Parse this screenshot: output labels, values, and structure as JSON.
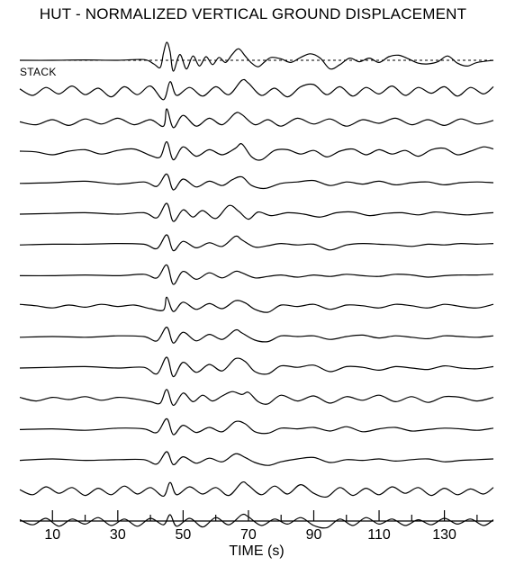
{
  "chart_data": {
    "type": "line",
    "title": "HUT - NORMALIZED VERTICAL GROUND DISPLACEMENT",
    "xlabel": "TIME (s)",
    "ylabel": "",
    "xlim": [
      0,
      145
    ],
    "x_major_ticks": [
      10,
      30,
      50,
      70,
      90,
      110,
      130
    ],
    "x_minor_ticks": [
      20,
      40,
      60,
      80,
      100,
      120,
      140
    ],
    "series": [
      {
        "name": "STACK",
        "dashed_baseline": true,
        "x": [
          0,
          10,
          20,
          30,
          38,
          41,
          43,
          44,
          45,
          46,
          47,
          49,
          51,
          53,
          55,
          57,
          59,
          61,
          63,
          65,
          67,
          69,
          71,
          73,
          75,
          77,
          80,
          83,
          86,
          89,
          92,
          95,
          98,
          101,
          104,
          107,
          110,
          113,
          116,
          119,
          122,
          125,
          128,
          131,
          134,
          137,
          140,
          145
        ],
        "y": [
          0,
          0,
          0.05,
          0,
          0.1,
          -0.5,
          -1,
          1,
          2.5,
          1.2,
          -1.5,
          0.8,
          -1.2,
          0.6,
          -0.8,
          0.5,
          -0.6,
          0.4,
          -0.3,
          0.8,
          1.6,
          0.6,
          -0.4,
          -0.9,
          -0.2,
          0.4,
          0.2,
          -0.3,
          0.4,
          0.9,
          0.3,
          -1.2,
          -0.6,
          0.3,
          -0.2,
          0.3,
          -0.3,
          0.5,
          0.7,
          0.2,
          -0.4,
          -0.5,
          -0.2,
          0.6,
          -0.4,
          -0.8,
          -0.3,
          0
        ]
      },
      {
        "x": [
          0,
          4,
          8,
          12,
          16,
          20,
          24,
          28,
          32,
          36,
          40,
          44,
          46,
          48,
          52,
          56,
          60,
          64,
          68,
          70,
          74,
          78,
          82,
          86,
          90,
          94,
          98,
          102,
          106,
          110,
          114,
          118,
          122,
          126,
          130,
          134,
          138,
          142,
          145
        ],
        "y": [
          0.3,
          -0.6,
          0.5,
          -0.4,
          0.7,
          -0.5,
          0.4,
          -0.8,
          0.6,
          -0.5,
          0.7,
          -1.2,
          1.3,
          -0.6,
          0.5,
          -0.7,
          0.6,
          -0.5,
          1.5,
          1.1,
          -0.6,
          0.4,
          -0.8,
          0.6,
          0.9,
          -0.5,
          0.6,
          -0.7,
          0.5,
          -0.4,
          0.7,
          -0.6,
          0.5,
          -0.3,
          0.6,
          -0.7,
          0.5,
          -0.4,
          0.6
        ]
      },
      {
        "x": [
          0,
          5,
          10,
          15,
          20,
          25,
          30,
          35,
          40,
          44,
          45,
          47,
          50,
          54,
          58,
          62,
          66,
          68,
          72,
          76,
          80,
          85,
          90,
          95,
          100,
          105,
          110,
          115,
          120,
          125,
          130,
          135,
          140,
          145
        ],
        "y": [
          0,
          -0.4,
          0.3,
          -0.5,
          0.4,
          -0.3,
          0.5,
          -0.4,
          0.3,
          -0.6,
          1.8,
          -0.8,
          0.9,
          -0.6,
          0.5,
          -0.4,
          1.2,
          1,
          -0.4,
          0.3,
          -0.6,
          0.5,
          -0.3,
          0.4,
          -0.6,
          0.3,
          -0.2,
          0.5,
          -0.4,
          0.3,
          -0.5,
          0.4,
          -0.3,
          0.2
        ]
      },
      {
        "x": [
          0,
          5,
          10,
          15,
          20,
          25,
          30,
          35,
          40,
          43,
          45,
          47,
          50,
          54,
          58,
          62,
          66,
          68,
          71,
          74,
          78,
          82,
          86,
          90,
          94,
          98,
          102,
          106,
          110,
          114,
          118,
          122,
          126,
          130,
          134,
          138,
          142,
          145
        ],
        "y": [
          0.2,
          0.1,
          -0.3,
          0.2,
          0.4,
          -0.2,
          0.3,
          0.5,
          -0.4,
          -0.6,
          1.5,
          -1,
          0.8,
          -0.5,
          0.4,
          -0.3,
          0.6,
          1.2,
          -0.6,
          -1,
          0.3,
          0.4,
          -0.2,
          0.3,
          -0.6,
          0.2,
          0.5,
          -0.3,
          0.4,
          -0.2,
          0.3,
          -0.5,
          0.4,
          0.6,
          -0.3,
          0.2,
          0.8,
          0.5
        ]
      },
      {
        "x": [
          0,
          10,
          20,
          30,
          38,
          42,
          45,
          47,
          50,
          54,
          58,
          62,
          65,
          68,
          71,
          75,
          80,
          85,
          90,
          95,
          100,
          105,
          110,
          115,
          120,
          125,
          130,
          135,
          140,
          145
        ],
        "y": [
          0,
          0.1,
          0.3,
          -0.1,
          0.2,
          -0.4,
          1.3,
          -0.9,
          0.6,
          -0.5,
          0.3,
          -0.3,
          0.5,
          0.9,
          -0.3,
          -0.7,
          0,
          0.2,
          0.4,
          -0.3,
          0.2,
          -0.1,
          0.3,
          -0.2,
          0.1,
          0.2,
          -0.2,
          0.1,
          0.2,
          0.1
        ]
      },
      {
        "x": [
          0,
          10,
          20,
          30,
          38,
          42,
          45,
          47,
          50,
          53,
          56,
          60,
          64,
          67,
          70,
          73,
          77,
          82,
          87,
          92,
          97,
          102,
          107,
          112,
          117,
          122,
          127,
          132,
          137,
          142,
          145
        ],
        "y": [
          0,
          0.1,
          0.2,
          0,
          0.2,
          -0.5,
          1.5,
          -1,
          0.6,
          -0.4,
          0.5,
          -0.6,
          1.2,
          0.4,
          -0.7,
          0.3,
          -0.2,
          0.2,
          0,
          -0.4,
          0.2,
          0.3,
          -0.2,
          0.1,
          0.2,
          -0.1,
          0.3,
          0.1,
          -0.1,
          0.1,
          0.2
        ]
      },
      {
        "x": [
          0,
          10,
          20,
          30,
          38,
          42,
          45,
          47,
          50,
          54,
          58,
          62,
          66,
          68,
          72,
          76,
          80,
          85,
          90,
          95,
          100,
          105,
          110,
          115,
          120,
          125,
          130,
          135,
          140,
          145
        ],
        "y": [
          0,
          0.1,
          0.1,
          0.2,
          0.1,
          -0.5,
          1.4,
          -0.8,
          0.5,
          -0.4,
          0.3,
          -0.2,
          1.2,
          0.7,
          -0.3,
          -0.1,
          0.2,
          0,
          0.1,
          -0.7,
          0,
          0.2,
          0.1,
          0,
          -0.2,
          0.1,
          0,
          0.2,
          0.1,
          0.2
        ]
      },
      {
        "x": [
          0,
          10,
          20,
          30,
          38,
          42,
          45,
          47,
          50,
          54,
          58,
          62,
          66,
          68,
          72,
          76,
          80,
          85,
          90,
          95,
          100,
          105,
          110,
          115,
          120,
          125,
          130,
          135,
          140,
          145
        ],
        "y": [
          0,
          0,
          0.1,
          0,
          0.2,
          -0.3,
          1.5,
          -1.2,
          0.6,
          -0.5,
          0.4,
          -0.3,
          0.6,
          0.4,
          -0.3,
          -0.1,
          0.1,
          -0.2,
          0.1,
          -0.1,
          0.2,
          0,
          -0.1,
          0.2,
          0.1,
          -0.2,
          0,
          0.1,
          0.1,
          0.2
        ]
      },
      {
        "x": [
          0,
          5,
          10,
          15,
          20,
          25,
          30,
          35,
          40,
          44,
          45,
          47,
          50,
          54,
          58,
          62,
          66,
          69,
          72,
          76,
          80,
          85,
          90,
          95,
          100,
          105,
          110,
          115,
          120,
          125,
          130,
          135,
          140,
          145
        ],
        "y": [
          0.3,
          0.1,
          -0.2,
          0.2,
          -0.1,
          0.3,
          0,
          0.2,
          -0.3,
          -0.5,
          1.3,
          -0.7,
          0.6,
          -0.4,
          0.4,
          -0.3,
          0.8,
          0.5,
          -0.4,
          -0.8,
          0.2,
          0,
          0.3,
          -0.4,
          0.2,
          0.1,
          -0.2,
          0.3,
          0.1,
          -0.2,
          0.3,
          0,
          -0.2,
          0.3
        ]
      },
      {
        "x": [
          0,
          10,
          20,
          30,
          38,
          42,
          45,
          47,
          50,
          54,
          58,
          62,
          66,
          68,
          72,
          76,
          80,
          85,
          90,
          95,
          100,
          105,
          110,
          115,
          120,
          125,
          130,
          135,
          140,
          145
        ],
        "y": [
          0,
          0.1,
          0,
          0.2,
          0.1,
          -0.5,
          1.4,
          -0.8,
          0.7,
          -0.5,
          0.4,
          -0.3,
          1,
          0.6,
          -0.4,
          -0.6,
          0.2,
          0.1,
          0.2,
          -0.3,
          0.1,
          0.3,
          -0.1,
          0.2,
          0,
          -0.2,
          0.2,
          0.1,
          0,
          0.2
        ]
      },
      {
        "x": [
          0,
          10,
          20,
          30,
          38,
          42,
          45,
          47,
          50,
          54,
          58,
          62,
          66,
          69,
          72,
          76,
          80,
          85,
          90,
          95,
          100,
          105,
          110,
          115,
          120,
          125,
          130,
          135,
          140,
          145
        ],
        "y": [
          0,
          0.1,
          0.2,
          0,
          0.1,
          -0.8,
          1.5,
          -1.2,
          0.8,
          -0.6,
          0.5,
          -0.4,
          1.3,
          0.9,
          -0.5,
          -0.8,
          0.3,
          0.1,
          0.4,
          -0.5,
          0.2,
          0.1,
          -0.3,
          0.2,
          0,
          -0.2,
          0.3,
          0,
          -0.1,
          0.2
        ]
      },
      {
        "x": [
          0,
          5,
          10,
          15,
          20,
          25,
          30,
          35,
          40,
          43,
          45,
          47,
          50,
          53,
          56,
          59,
          62,
          65,
          68,
          70,
          73,
          76,
          80,
          85,
          90,
          95,
          100,
          105,
          110,
          115,
          120,
          125,
          130,
          135,
          140,
          145
        ],
        "y": [
          0.2,
          -0.3,
          0.2,
          -0.1,
          0.3,
          -0.2,
          0.2,
          0,
          -0.4,
          -0.6,
          1.3,
          -0.9,
          0.8,
          -0.4,
          0.5,
          -0.3,
          0.4,
          1,
          0.6,
          0.9,
          -0.4,
          -0.7,
          0.5,
          -0.3,
          0.4,
          -0.6,
          0.3,
          -0.2,
          0.5,
          -0.4,
          0.3,
          -0.5,
          0.3,
          0.2,
          -0.3,
          0.2
        ]
      },
      {
        "x": [
          0,
          10,
          20,
          30,
          38,
          42,
          45,
          47,
          50,
          54,
          58,
          62,
          66,
          69,
          72,
          76,
          80,
          85,
          90,
          95,
          100,
          105,
          110,
          115,
          120,
          125,
          130,
          135,
          140,
          145
        ],
        "y": [
          0,
          0.1,
          -0.1,
          0.2,
          0.1,
          -0.4,
          1.5,
          -0.7,
          0.6,
          -0.4,
          0.3,
          -0.3,
          1.1,
          0.8,
          -0.3,
          -0.5,
          0.2,
          0.1,
          0.3,
          -0.2,
          0.4,
          -0.3,
          0.1,
          0.3,
          -0.2,
          0,
          0.2,
          0.1,
          -0.1,
          0.2
        ]
      },
      {
        "x": [
          0,
          10,
          20,
          30,
          38,
          42,
          45,
          47,
          50,
          54,
          58,
          62,
          66,
          69,
          72,
          76,
          80,
          85,
          90,
          95,
          100,
          105,
          110,
          115,
          120,
          125,
          130,
          135,
          140,
          145
        ],
        "y": [
          0,
          0.2,
          0,
          0.1,
          0.1,
          -0.5,
          1.2,
          -0.6,
          0.5,
          -0.4,
          0.3,
          -0.2,
          0.9,
          0.4,
          -0.3,
          -0.7,
          -0.2,
          0.2,
          0.4,
          -0.3,
          0.1,
          0,
          0.2,
          -0.1,
          0.1,
          0.2,
          -0.2,
          0,
          0.1,
          0.2
        ]
      },
      {
        "x": [
          0,
          4,
          8,
          12,
          16,
          20,
          24,
          28,
          32,
          36,
          40,
          44,
          46,
          48,
          52,
          56,
          60,
          64,
          68,
          70,
          74,
          78,
          82,
          86,
          90,
          94,
          98,
          102,
          106,
          110,
          114,
          118,
          122,
          126,
          130,
          134,
          138,
          142,
          145
        ],
        "y": [
          0.2,
          -0.5,
          0.6,
          -0.3,
          0.5,
          -0.6,
          0.4,
          -0.5,
          0.7,
          -0.4,
          0.5,
          -0.7,
          1.2,
          -0.5,
          0.6,
          -0.4,
          0.5,
          -0.6,
          1.2,
          0.8,
          -0.5,
          0.7,
          -0.4,
          0.9,
          -0.3,
          -0.8,
          0.5,
          -0.6,
          0.4,
          -0.5,
          0.6,
          -0.3,
          0.5,
          -0.6,
          0.4,
          -0.5,
          0.3,
          -0.4,
          0.5
        ]
      },
      {
        "x": [
          0,
          4,
          8,
          12,
          16,
          20,
          24,
          28,
          32,
          36,
          40,
          44,
          46,
          48,
          52,
          56,
          60,
          64,
          68,
          70,
          74,
          78,
          82,
          86,
          90,
          94,
          98,
          102,
          106,
          110,
          114,
          118,
          122,
          126,
          130,
          134,
          138,
          142,
          145
        ],
        "y": [
          0.3,
          -0.4,
          0.5,
          -0.6,
          0.4,
          -0.3,
          0.6,
          -0.5,
          0.4,
          -0.6,
          0.5,
          -0.4,
          1,
          -0.6,
          0.5,
          -0.7,
          0.6,
          -0.4,
          1,
          0.7,
          -0.5,
          0.4,
          -0.3,
          0.6,
          -0.5,
          -0.8,
          0.4,
          -0.5,
          0.6,
          -0.3,
          0.4,
          -0.5,
          0.3,
          -0.4,
          0.5,
          -0.3,
          0.4,
          -0.5,
          0.3
        ]
      }
    ]
  }
}
